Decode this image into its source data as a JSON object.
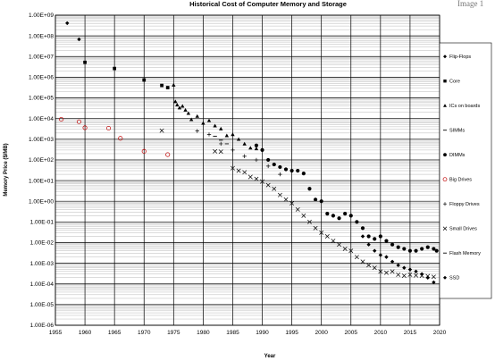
{
  "page_label": "Image 1",
  "chart_data": {
    "type": "scatter",
    "title": "Historical Cost of Computer Memory and Storage",
    "xlabel": "Year",
    "ylabel": "Memory Price ($/MB)",
    "xlim": [
      1955,
      2020
    ],
    "ylim_log10": [
      -6,
      9
    ],
    "y_scale": "log",
    "grid": true,
    "legend_position": "right",
    "x_ticks": [
      "1955",
      "1960",
      "1965",
      "1970",
      "1975",
      "1980",
      "1985",
      "1990",
      "1995",
      "2000",
      "2005",
      "2010",
      "2015",
      "2020"
    ],
    "y_ticks": [
      "1.00E+09",
      "1.00E+08",
      "1.00E+07",
      "1.00E+06",
      "1.00E+05",
      "1.00E+04",
      "1.00E+03",
      "1.00E+02",
      "1.00E+01",
      "1.00E+00",
      "1.00E-01",
      "1.00E-02",
      "1.00E-03",
      "1.00E-04",
      "1.00E-05",
      "1.00E-06"
    ],
    "series": [
      {
        "name": "Flip-Flops",
        "marker": "diamond",
        "color": "#000000",
        "points": [
          [
            1957,
            411041792
          ],
          [
            1959,
            67947725
          ]
        ]
      },
      {
        "name": "Core",
        "marker": "square",
        "color": "#000000",
        "points": [
          [
            1960,
            5242880
          ],
          [
            1965,
            2642412
          ],
          [
            1970,
            734003
          ],
          [
            1973,
            399360
          ],
          [
            1974,
            314573
          ]
        ]
      },
      {
        "name": "ICs on boards",
        "marker": "triangle",
        "color": "#000000",
        "points": [
          [
            1975,
            421888
          ],
          [
            1975.3,
            67000
          ],
          [
            1975.6,
            46000
          ],
          [
            1976,
            33000
          ],
          [
            1976.5,
            40000
          ],
          [
            1977,
            26000
          ],
          [
            1977.5,
            18000
          ],
          [
            1978,
            9000
          ],
          [
            1979,
            13000
          ],
          [
            1980,
            6000
          ],
          [
            1981,
            8000
          ],
          [
            1982,
            4500
          ],
          [
            1983,
            3200
          ],
          [
            1984,
            1500
          ],
          [
            1985,
            1700
          ],
          [
            1986,
            1000
          ],
          [
            1987,
            600
          ],
          [
            1988,
            380
          ],
          [
            1989,
            350
          ]
        ]
      },
      {
        "name": "SIMMs",
        "marker": "dash",
        "color": "#000000",
        "points": [
          [
            1982,
            1400
          ],
          [
            1983,
            900
          ],
          [
            1984,
            600
          ]
        ]
      },
      {
        "name": "DIMMs",
        "marker": "circle",
        "color": "#000000",
        "points": [
          [
            1989,
            500
          ],
          [
            1990,
            300
          ],
          [
            1991,
            100
          ],
          [
            1992,
            60
          ],
          [
            1993,
            45
          ],
          [
            1994,
            35
          ],
          [
            1995,
            30
          ],
          [
            1996,
            30
          ],
          [
            1997,
            22
          ],
          [
            1998,
            4
          ],
          [
            1999,
            1.2
          ],
          [
            2000,
            1.0
          ],
          [
            2001,
            0.25
          ],
          [
            2002,
            0.2
          ],
          [
            2003,
            0.15
          ],
          [
            2004,
            0.25
          ],
          [
            2005,
            0.2
          ],
          [
            2006,
            0.1
          ],
          [
            2007,
            0.05
          ],
          [
            2008,
            0.02
          ],
          [
            2009,
            0.015
          ],
          [
            2010,
            0.02
          ],
          [
            2011,
            0.012
          ],
          [
            2012,
            0.008
          ],
          [
            2013,
            0.006
          ],
          [
            2014,
            0.005
          ],
          [
            2015,
            0.004
          ],
          [
            2016,
            0.004
          ],
          [
            2017,
            0.005
          ],
          [
            2018,
            0.006
          ],
          [
            2019,
            0.005
          ],
          [
            2019.5,
            0.004
          ]
        ]
      },
      {
        "name": "Big Drives",
        "marker": "open-circle",
        "color": "#c00000",
        "points": [
          [
            1956,
            9200
          ],
          [
            1959,
            7000
          ],
          [
            1960,
            3600
          ],
          [
            1964,
            3400
          ],
          [
            1966,
            1100
          ],
          [
            1970,
            260
          ],
          [
            1974,
            180
          ]
        ]
      },
      {
        "name": "Floppy Drives",
        "marker": "plus",
        "color": "#000000",
        "points": [
          [
            1979,
            2500
          ],
          [
            1981,
            1700
          ],
          [
            1983,
            600
          ],
          [
            1985,
            300
          ],
          [
            1987,
            150
          ],
          [
            1989,
            100
          ],
          [
            1991,
            50
          ],
          [
            1993,
            20
          ]
        ]
      },
      {
        "name": "Small Drives",
        "marker": "x",
        "color": "#000000",
        "points": [
          [
            1973,
            2600
          ],
          [
            1982,
            260
          ],
          [
            1983,
            250
          ],
          [
            1985,
            40
          ],
          [
            1986,
            30
          ],
          [
            1987,
            25
          ],
          [
            1988,
            15
          ],
          [
            1989,
            12
          ],
          [
            1990,
            9
          ],
          [
            1991,
            6
          ],
          [
            1992,
            4
          ],
          [
            1993,
            2
          ],
          [
            1994,
            1.2
          ],
          [
            1995,
            0.8
          ],
          [
            1996,
            0.4
          ],
          [
            1997,
            0.2
          ],
          [
            1998,
            0.1
          ],
          [
            1999,
            0.05
          ],
          [
            2000,
            0.03
          ],
          [
            2001,
            0.02
          ],
          [
            2002,
            0.012
          ],
          [
            2003,
            0.008
          ],
          [
            2004,
            0.005
          ],
          [
            2005,
            0.004
          ],
          [
            2006,
            0.002
          ],
          [
            2007,
            0.0012
          ],
          [
            2008,
            0.0008
          ],
          [
            2009,
            0.0006
          ],
          [
            2010,
            0.0004
          ],
          [
            2011,
            0.00035
          ],
          [
            2012,
            0.0004
          ],
          [
            2013,
            0.00028
          ],
          [
            2014,
            0.00025
          ],
          [
            2015,
            0.00028
          ],
          [
            2016,
            0.00026
          ],
          [
            2017,
            0.00025
          ],
          [
            2018,
            0.00024
          ],
          [
            2019,
            0.00022
          ]
        ]
      },
      {
        "name": "Flash Memory",
        "marker": "dash",
        "color": "#000000",
        "points": []
      },
      {
        "name": "SSD",
        "marker": "diamond",
        "color": "#000000",
        "points": [
          [
            2007,
            0.02
          ],
          [
            2008,
            0.008
          ],
          [
            2009,
            0.004
          ],
          [
            2010,
            0.0025
          ],
          [
            2011,
            0.002
          ],
          [
            2012,
            0.0012
          ],
          [
            2013,
            0.0008
          ],
          [
            2014,
            0.0006
          ],
          [
            2015,
            0.0005
          ],
          [
            2016,
            0.0004
          ],
          [
            2017,
            0.0003
          ],
          [
            2018,
            0.0002
          ],
          [
            2019,
            0.00012
          ]
        ]
      }
    ]
  }
}
